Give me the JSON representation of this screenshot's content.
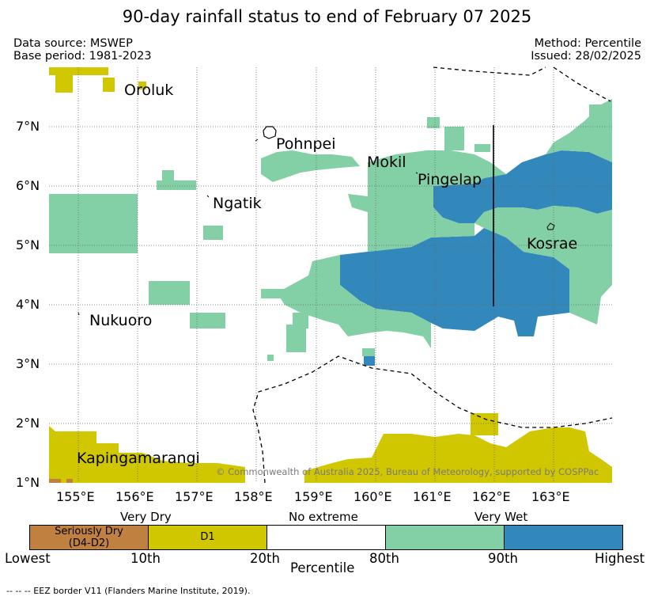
{
  "title": "90-day rainfall status to end of February 07 2025",
  "meta": {
    "data_source": "Data source: MSWEP",
    "base_period": "Base period: 1981-2023",
    "method": "Method: Percentile",
    "issued": "Issued: 28/02/2025"
  },
  "axes": {
    "lat_ticks": [
      "7°N",
      "6°N",
      "5°N",
      "4°N",
      "3°N",
      "2°N",
      "1°N"
    ],
    "lon_ticks": [
      "155°E",
      "156°E",
      "157°E",
      "158°E",
      "159°E",
      "160°E",
      "161°E",
      "162°E",
      "163°E"
    ]
  },
  "places": {
    "oroluk": "Oroluk",
    "pohnpei": "Pohnpei",
    "mokil": "Mokil",
    "pingelap": "Pingelap",
    "ngatik": "Ngatik",
    "kosrae": "Kosrae",
    "nukuoro": "Nukuoro",
    "kapingamarangi": "Kapingamarangi"
  },
  "copyright": "© Commonwealth of Australia 2025, Bureau of Meteorology, supported by COSPPac",
  "legend": {
    "categories": {
      "very_dry": "Very Dry",
      "no_extreme": "No extreme",
      "very_wet": "Very Wet"
    },
    "swatches": {
      "seriously_dry_line1": "Seriously Dry",
      "seriously_dry_line2": "(D4-D2)",
      "d1": "D1"
    },
    "labels": {
      "lowest": "Lowest",
      "p10": "10th",
      "p20": "20th",
      "p80": "80th",
      "p90": "90th",
      "highest": "Highest"
    },
    "axis_title": "Percentile",
    "colors": {
      "seriously_dry": "#bf8040",
      "d1": "#d1c700",
      "no_extreme": "#ffffff",
      "wet": "#84d0a6",
      "very_wet": "#3388bb"
    }
  },
  "footer": "-- -- -- EEZ border V11 (Flanders Marine Institute, 2019)."
}
